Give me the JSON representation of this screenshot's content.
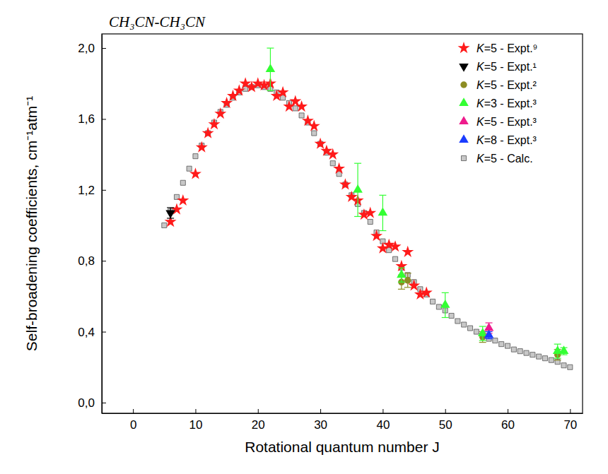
{
  "chart_data": {
    "type": "scatter",
    "title": "CH₃CN-CH₃CN",
    "x_label": "Rotational quantum number J",
    "y_label": "Self-broadening coefficients, cm⁻¹atm⁻¹",
    "xlim": [
      -5,
      72
    ],
    "xticks": [
      0,
      10,
      20,
      30,
      40,
      50,
      60,
      70
    ],
    "ylim": [
      -0.06,
      2.08
    ],
    "yticks": [
      {
        "value": 0,
        "label": "0,0"
      },
      {
        "value": 0.4,
        "label": "0,4"
      },
      {
        "value": 0.8,
        "label": "0,8"
      },
      {
        "value": 1.2,
        "label": "1,2"
      },
      {
        "value": 1.6,
        "label": "1,6"
      },
      {
        "value": 2.0,
        "label": "2,0"
      }
    ],
    "legend": "top-right",
    "grid": false,
    "series": [
      {
        "name": "K=5 - Expt.⁹",
        "color": "#ff1a1a",
        "marker": "star",
        "x": [
          6,
          7,
          8,
          10,
          11,
          12,
          13,
          14,
          15,
          16,
          17,
          18,
          19,
          20,
          21,
          22,
          23,
          24,
          25,
          26,
          27,
          28,
          29,
          30,
          31,
          32,
          33,
          34,
          35,
          36,
          37,
          38,
          39,
          40,
          41,
          42,
          43,
          44,
          45,
          46,
          47
        ],
        "values": [
          1.02,
          1.09,
          1.14,
          1.29,
          1.44,
          1.52,
          1.57,
          1.63,
          1.69,
          1.73,
          1.76,
          1.8,
          1.78,
          1.8,
          1.79,
          1.8,
          1.73,
          1.75,
          1.67,
          1.7,
          1.67,
          1.59,
          1.56,
          1.46,
          1.42,
          1.4,
          1.32,
          1.23,
          1.16,
          1.14,
          1.06,
          1.07,
          0.94,
          0.87,
          0.89,
          0.88,
          0.77,
          0.85,
          0.66,
          0.61,
          0.62
        ]
      },
      {
        "name": "K=5 - Expt.¹",
        "color": "#000000",
        "marker": "triangle-down",
        "x": [
          6
        ],
        "values": [
          1.07
        ],
        "errors": [
          0.03
        ]
      },
      {
        "name": "K=5 - Expt.²",
        "color": "#8c8c23",
        "marker": "circle",
        "x": [
          43,
          44,
          56,
          68
        ],
        "values": [
          0.68,
          0.69,
          0.37,
          0.27
        ],
        "errors": [
          0.04,
          0.04,
          0.03,
          0.03
        ]
      },
      {
        "name": "K=3 - Expt.³",
        "color": "#33ff33",
        "marker": "triangle",
        "x": [
          22,
          36,
          40,
          43,
          50,
          56,
          68,
          69
        ],
        "values": [
          1.88,
          1.2,
          1.07,
          0.72,
          0.55,
          0.39,
          0.29,
          0.29
        ],
        "errors": [
          0.12,
          0.15,
          0.1,
          0.04,
          0.07,
          0.04,
          0.04,
          0.02
        ]
      },
      {
        "name": "K=5 - Expt.³",
        "color": "#ee1b8c",
        "marker": "triangle",
        "x": [
          57
        ],
        "values": [
          0.42
        ],
        "errors": [
          0.03
        ]
      },
      {
        "name": "K=8 - Expt.³",
        "color": "#1a3cff",
        "marker": "triangle",
        "x": [
          57
        ],
        "values": [
          0.38
        ],
        "errors": [
          0.02
        ]
      },
      {
        "name": "K=5 - Calc.",
        "color": "#c8c8c8",
        "marker": "square",
        "x": [
          5,
          6,
          7,
          8,
          9,
          10,
          11,
          12,
          13,
          14,
          15,
          16,
          17,
          18,
          19,
          20,
          21,
          22,
          23,
          24,
          25,
          26,
          27,
          28,
          29,
          30,
          31,
          32,
          33,
          34,
          35,
          36,
          37,
          38,
          39,
          40,
          41,
          42,
          43,
          44,
          45,
          46,
          47,
          48,
          49,
          50,
          51,
          52,
          53,
          54,
          55,
          56,
          57,
          58,
          59,
          60,
          61,
          62,
          63,
          64,
          65,
          66,
          67,
          68,
          69,
          70
        ],
        "values": [
          1.0,
          1.08,
          1.16,
          1.24,
          1.32,
          1.39,
          1.45,
          1.52,
          1.58,
          1.64,
          1.68,
          1.72,
          1.75,
          1.77,
          1.78,
          1.79,
          1.78,
          1.77,
          1.75,
          1.72,
          1.69,
          1.66,
          1.62,
          1.58,
          1.52,
          1.46,
          1.41,
          1.35,
          1.29,
          1.23,
          1.17,
          1.12,
          1.07,
          1.02,
          0.96,
          0.91,
          0.86,
          0.81,
          0.76,
          0.72,
          0.68,
          0.64,
          0.61,
          0.57,
          0.54,
          0.52,
          0.49,
          0.46,
          0.44,
          0.42,
          0.4,
          0.38,
          0.36,
          0.35,
          0.33,
          0.32,
          0.3,
          0.29,
          0.28,
          0.27,
          0.26,
          0.25,
          0.24,
          0.23,
          0.21,
          0.2
        ]
      }
    ]
  }
}
